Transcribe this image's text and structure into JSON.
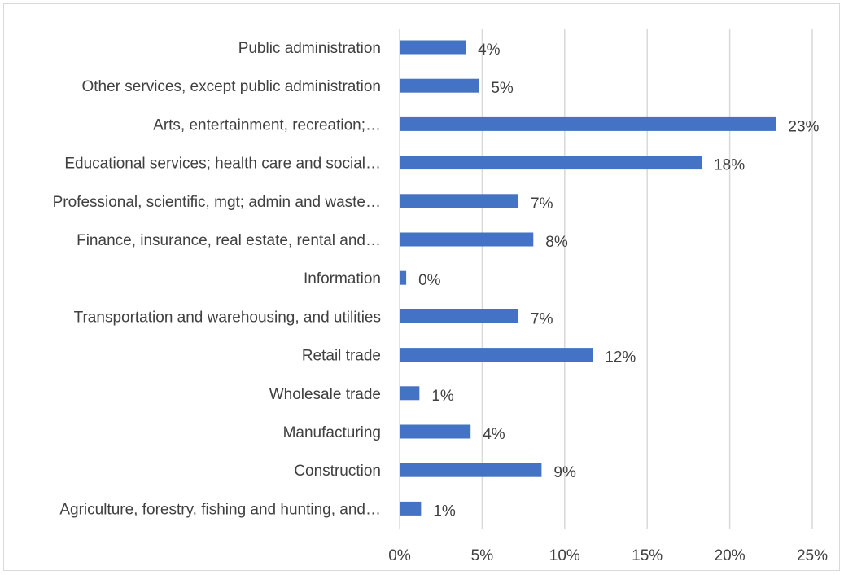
{
  "chart_data": {
    "type": "bar",
    "orientation": "horizontal",
    "categories": [
      "Public administration",
      "Other services, except public administration",
      "Arts, entertainment, recreation;…",
      "Educational services; health care and social…",
      "Professional, scientific, mgt; admin and waste…",
      "Finance, insurance, real estate, rental and…",
      "Information",
      "Transportation and warehousing, and utilities",
      "Retail trade",
      "Wholesale trade",
      "Manufacturing",
      "Construction",
      "Agriculture, forestry, fishing and hunting, and…"
    ],
    "values": [
      4.0,
      4.8,
      22.8,
      18.3,
      7.2,
      8.1,
      0.4,
      7.2,
      11.7,
      1.2,
      4.3,
      8.6,
      1.3
    ],
    "data_labels": [
      "4%",
      "5%",
      "23%",
      "18%",
      "7%",
      "8%",
      "0%",
      "7%",
      "12%",
      "1%",
      "4%",
      "9%",
      "1%"
    ],
    "xlim": [
      0,
      25
    ],
    "x_ticks": [
      0,
      5,
      10,
      15,
      20,
      25
    ],
    "x_tick_labels": [
      "0%",
      "5%",
      "10%",
      "15%",
      "20%",
      "25%"
    ],
    "grid": "vertical",
    "bar_color": "#4472c4",
    "grid_color": "#d9d9d9",
    "text_color": "#404040"
  }
}
